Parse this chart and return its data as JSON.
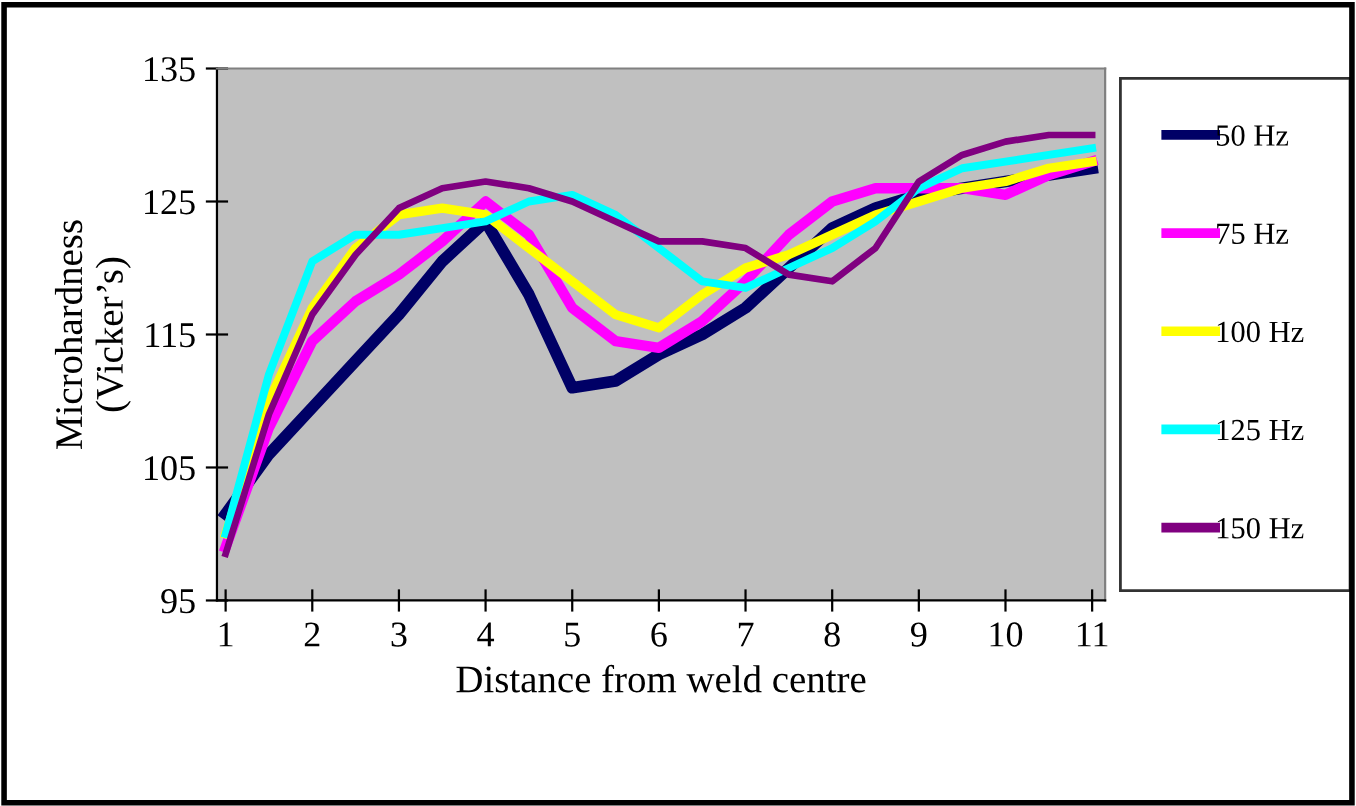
{
  "chart_data": {
    "type": "line",
    "xlabel": "Distance from weld centre",
    "ylabel": "Microhardness\n(Vicker’s)",
    "x": [
      1,
      1.5,
      2,
      2.5,
      3,
      3.5,
      4,
      4.5,
      5,
      5.5,
      6,
      6.5,
      7,
      7.5,
      8,
      8.5,
      9,
      9.5,
      10,
      10.5,
      11
    ],
    "series": [
      {
        "name": "50 Hz",
        "color": "#000066",
        "values": [
          101.5,
          106,
          109.5,
          113,
          116.5,
          120.5,
          123.5,
          118,
          111,
          111.5,
          113.5,
          115,
          117,
          120,
          123,
          124.5,
          125.5,
          126,
          126.5,
          127,
          127.5
        ]
      },
      {
        "name": "75 Hz",
        "color": "#ff00ff",
        "values": [
          99,
          108,
          114.5,
          117.5,
          119.5,
          122,
          125,
          122.5,
          117,
          114.5,
          114,
          116,
          119,
          122.5,
          125,
          126,
          126,
          126,
          125.5,
          127,
          128
        ]
      },
      {
        "name": "100 Hz",
        "color": "#ffff00",
        "values": [
          100,
          110,
          117,
          121.5,
          124,
          124.5,
          124,
          121.5,
          119,
          116.5,
          115.5,
          118,
          120,
          121,
          122.5,
          124,
          125,
          126,
          126.5,
          127.5,
          128
        ]
      },
      {
        "name": "125 Hz",
        "color": "#00ffff",
        "values": [
          100,
          112,
          120.5,
          122.5,
          122.5,
          123,
          123.5,
          125,
          125.5,
          124,
          121.5,
          119,
          118.5,
          120,
          121.5,
          123.5,
          126,
          127.5,
          128,
          128.5,
          129
        ]
      },
      {
        "name": "150 Hz",
        "color": "#800080",
        "values": [
          98.5,
          109,
          116.5,
          121,
          124.5,
          126,
          126.5,
          126,
          125,
          123.5,
          122,
          122,
          121.5,
          119.5,
          119,
          121.5,
          126.5,
          128.5,
          129.5,
          130,
          130
        ]
      }
    ],
    "xlim": [
      0.9,
      11.15
    ],
    "ylim": [
      95,
      135
    ],
    "xticks": [
      1,
      2,
      3,
      4,
      5,
      6,
      7,
      8,
      9,
      10,
      11
    ],
    "yticks": [
      95,
      105,
      115,
      125,
      135
    ],
    "grid": false,
    "legend": "right",
    "line_style": "solid",
    "marker": "none"
  }
}
